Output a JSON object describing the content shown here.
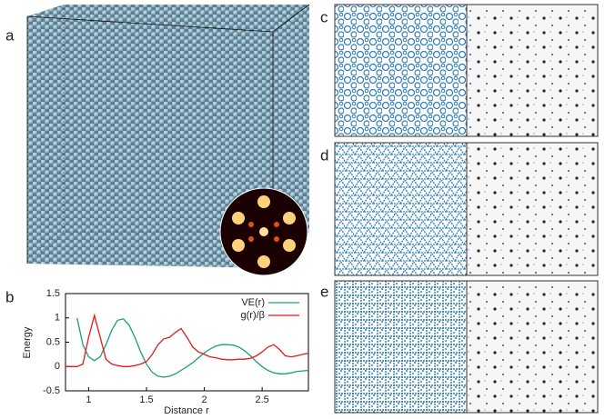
{
  "panel_labels": [
    "a",
    "b",
    "c",
    "d",
    "e"
  ],
  "chart_data": {
    "type": "line",
    "x_label": "Distance r",
    "y_label": "Energy",
    "x": [
      0.8,
      0.85,
      0.9,
      0.95,
      1.0,
      1.05,
      1.1,
      1.15,
      1.2,
      1.25,
      1.3,
      1.35,
      1.4,
      1.45,
      1.5,
      1.55,
      1.6,
      1.65,
      1.7,
      1.75,
      1.8,
      1.85,
      1.9,
      1.95,
      2.0,
      2.05,
      2.1,
      2.15,
      2.2,
      2.25,
      2.3,
      2.35,
      2.4,
      2.45,
      2.5,
      2.55,
      2.6,
      2.65,
      2.7,
      2.75,
      2.8,
      2.85,
      2.9
    ],
    "series": [
      {
        "name": "VE(r)",
        "color": "#1b9e77",
        "values": [
          null,
          null,
          1.0,
          0.45,
          0.2,
          0.12,
          0.2,
          0.45,
          0.75,
          0.95,
          0.98,
          0.85,
          0.6,
          0.3,
          0.05,
          -0.12,
          -0.2,
          -0.22,
          -0.2,
          -0.15,
          -0.08,
          0,
          0.08,
          0.18,
          0.28,
          0.36,
          0.42,
          0.45,
          0.45,
          0.44,
          0.4,
          0.32,
          0.22,
          0.1,
          0,
          -0.08,
          -0.13,
          -0.15,
          -0.15,
          -0.13,
          -0.1,
          -0.09,
          -0.08
        ]
      },
      {
        "name": "g(r)/β",
        "color": "#e41a1c",
        "values": [
          0,
          0,
          0,
          0.05,
          0.6,
          1.05,
          0.6,
          0.15,
          0.05,
          0.02,
          0,
          0,
          0.02,
          0.05,
          0.1,
          0.25,
          0.45,
          0.57,
          0.6,
          0.7,
          0.78,
          0.6,
          0.4,
          0.3,
          0.25,
          0.2,
          0.18,
          0.15,
          0.14,
          0.14,
          0.15,
          0.15,
          0.17,
          0.22,
          0.3,
          0.4,
          0.45,
          0.35,
          0.22,
          0.2,
          0.22,
          0.25,
          0.27
        ]
      }
    ],
    "xlim": [
      0.8,
      2.9
    ],
    "ylim": [
      -0.5,
      1.5
    ],
    "xticks": [
      1,
      1.5,
      2,
      2.5
    ],
    "yticks": [
      -0.5,
      0,
      0.5,
      1,
      1.5
    ],
    "legend": "upper right"
  }
}
